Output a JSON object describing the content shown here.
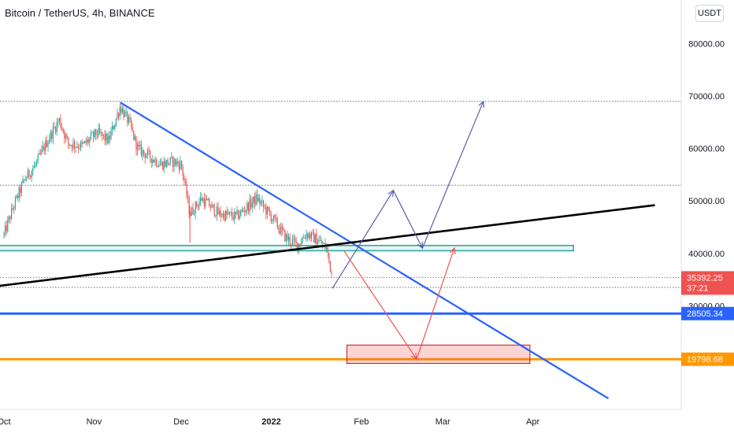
{
  "header": {
    "title": "Bitcoin / TetherUS, 4h, BINANCE",
    "currency_button": "USDT"
  },
  "colors": {
    "up": "#26a69a",
    "down": "#ef5350",
    "trendline": "#2962ff",
    "support_line": "#000000",
    "zone": "#26a69a",
    "target_box": "#ef9a9a",
    "path_bull": "#5b5ea6",
    "path_bear": "#ef5350",
    "level_blue": "#2962ff",
    "level_orange": "#ff9800",
    "price_tag": "#ef5350"
  },
  "chart_data": {
    "type": "candlestick",
    "symbol": "Bitcoin / TetherUS",
    "timeframe": "4h",
    "exchange": "BINANCE",
    "ylim": [
      12000,
      90000
    ],
    "x_tick_labels": [
      "Oct",
      "Nov",
      "Dec",
      "2022",
      "Feb",
      "Mar",
      "Apr"
    ],
    "y_tick_labels": [
      "80000.00",
      "70000.00",
      "60000.00",
      "50000.00",
      "40000.00",
      "30000.00"
    ],
    "y_tick_values": [
      80000,
      70000,
      60000,
      50000,
      40000,
      30000
    ],
    "price_path": [
      {
        "date": "2021-10-01",
        "price": 43500
      },
      {
        "date": "2021-10-04",
        "price": 48500
      },
      {
        "date": "2021-10-08",
        "price": 54000
      },
      {
        "date": "2021-10-12",
        "price": 57000
      },
      {
        "date": "2021-10-16",
        "price": 61500
      },
      {
        "date": "2021-10-20",
        "price": 65500
      },
      {
        "date": "2021-10-23",
        "price": 61000
      },
      {
        "date": "2021-10-28",
        "price": 60500
      },
      {
        "date": "2021-11-02",
        "price": 63000
      },
      {
        "date": "2021-11-06",
        "price": 61500
      },
      {
        "date": "2021-11-10",
        "price": 68000
      },
      {
        "date": "2021-11-13",
        "price": 65000
      },
      {
        "date": "2021-11-16",
        "price": 60000
      },
      {
        "date": "2021-11-20",
        "price": 58500
      },
      {
        "date": "2021-11-24",
        "price": 57000
      },
      {
        "date": "2021-11-28",
        "price": 57500
      },
      {
        "date": "2021-12-01",
        "price": 57000
      },
      {
        "date": "2021-12-04",
        "price": 47500
      },
      {
        "date": "2021-12-08",
        "price": 50500
      },
      {
        "date": "2021-12-14",
        "price": 47500
      },
      {
        "date": "2021-12-20",
        "price": 47000
      },
      {
        "date": "2021-12-27",
        "price": 50500
      },
      {
        "date": "2022-01-01",
        "price": 47000
      },
      {
        "date": "2022-01-06",
        "price": 43000
      },
      {
        "date": "2022-01-10",
        "price": 41500
      },
      {
        "date": "2022-01-13",
        "price": 43800
      },
      {
        "date": "2022-01-17",
        "price": 42500
      },
      {
        "date": "2022-01-20",
        "price": 41000
      },
      {
        "date": "2022-01-22",
        "price": 35392.25
      }
    ],
    "horizontal_levels": [
      {
        "price": 69000,
        "style": "dotted"
      },
      {
        "price": 53000,
        "style": "dotted"
      },
      {
        "price": 33500,
        "style": "dotted"
      },
      {
        "price": 28505.34,
        "style": "solid",
        "label": "28505.34"
      },
      {
        "price": 19798.68,
        "style": "solid",
        "label": "19798.68"
      }
    ],
    "support_zone": {
      "from": 40500,
      "to": 41500,
      "start": "2021-09-29",
      "end": "2022-04-15"
    },
    "downtrend_line": [
      {
        "date": "2021-11-10",
        "price": 68800
      },
      {
        "date": "2022-04-27",
        "price": 12300
      }
    ],
    "rising_line": [
      {
        "date": "2021-09-28",
        "price": 33700
      },
      {
        "date": "2022-05-13",
        "price": 49200
      }
    ],
    "target_box": {
      "from": 19000,
      "to": 22500,
      "start": "2022-01-27",
      "end": "2022-03-31"
    },
    "projection_bullish": [
      {
        "date": "2022-01-22",
        "price": 33300
      },
      {
        "date": "2022-02-12",
        "price": 52000
      },
      {
        "date": "2022-02-22",
        "price": 41000
      },
      {
        "date": "2022-03-15",
        "price": 69000
      }
    ],
    "projection_bearish": [
      {
        "date": "2022-01-26",
        "price": 40500
      },
      {
        "date": "2022-02-20",
        "price": 19800
      },
      {
        "date": "2022-03-05",
        "price": 41000
      }
    ],
    "last_price": {
      "value": "35392.25",
      "countdown": "37:21"
    }
  }
}
